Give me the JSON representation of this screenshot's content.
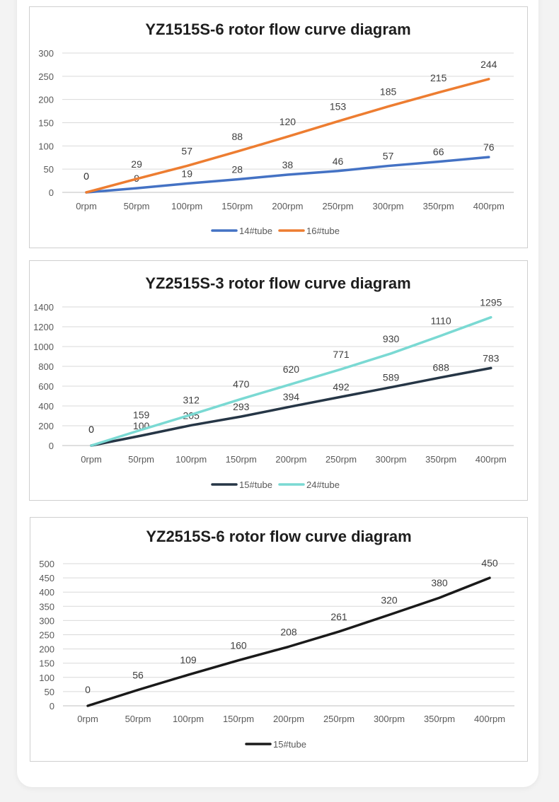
{
  "chart_data": [
    {
      "type": "line",
      "title": "YZ1515S-6 rotor flow curve diagram",
      "categories": [
        "0rpm",
        "50rpm",
        "100rpm",
        "150rpm",
        "200rpm",
        "250rpm",
        "300rpm",
        "350rpm",
        "400rpm"
      ],
      "yticks": [
        0,
        50,
        100,
        150,
        200,
        250,
        300
      ],
      "ylim": [
        0,
        300
      ],
      "grid": true,
      "legend_position": "bottom",
      "series": [
        {
          "name": "14#tube",
          "color": "#4472c4",
          "values": [
            0,
            9,
            19,
            28,
            38,
            46,
            57,
            66,
            76
          ],
          "label_side": "below"
        },
        {
          "name": "16#tube",
          "color": "#ed7d31",
          "values": [
            0,
            29,
            57,
            88,
            120,
            153,
            185,
            215,
            244
          ],
          "label_side": "above"
        }
      ]
    },
    {
      "type": "line",
      "title": "YZ2515S-3 rotor flow curve diagram",
      "categories": [
        "0rpm",
        "50rpm",
        "100rpm",
        "150rpm",
        "200rpm",
        "250rpm",
        "300rpm",
        "350rpm",
        "400rpm"
      ],
      "yticks": [
        0,
        200,
        400,
        600,
        800,
        1000,
        1200,
        1400
      ],
      "ylim": [
        0,
        1400
      ],
      "grid": true,
      "legend_position": "bottom",
      "series": [
        {
          "name": "15#tube",
          "color": "#263646",
          "values": [
            0,
            100,
            205,
            293,
            394,
            492,
            589,
            688,
            783
          ],
          "label_side": "below"
        },
        {
          "name": "24#tube",
          "color": "#7ad9d3",
          "values": [
            0,
            159,
            312,
            470,
            620,
            771,
            930,
            1110,
            1295
          ],
          "label_side": "above"
        }
      ]
    },
    {
      "type": "line",
      "title": "YZ2515S-6 rotor flow curve diagram",
      "categories": [
        "0rpm",
        "50rpm",
        "100rpm",
        "150rpm",
        "200rpm",
        "250rpm",
        "300rpm",
        "350rpm",
        "400rpm"
      ],
      "yticks": [
        0,
        50,
        100,
        150,
        200,
        250,
        300,
        350,
        400,
        450,
        500
      ],
      "ylim": [
        0,
        500
      ],
      "grid": true,
      "legend_position": "bottom",
      "series": [
        {
          "name": "15#tube",
          "color": "#1a1a1a",
          "values": [
            0,
            56,
            109,
            160,
            208,
            261,
            320,
            380,
            450
          ],
          "label_side": "above"
        }
      ]
    }
  ]
}
